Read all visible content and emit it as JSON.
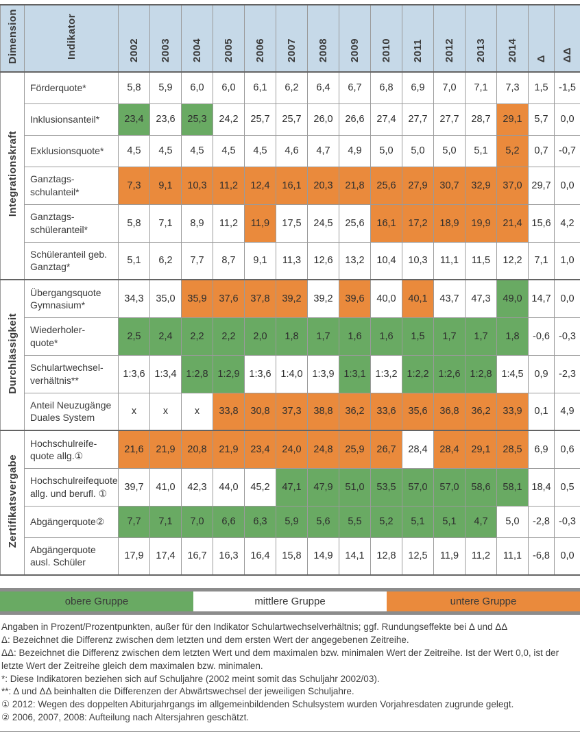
{
  "table": {
    "columns": {
      "dimension": "Dimension",
      "indicator": "Indikator",
      "years": [
        "2002",
        "2003",
        "2004",
        "2005",
        "2006",
        "2007",
        "2008",
        "2009",
        "2010",
        "2011",
        "2012",
        "2013",
        "2014"
      ],
      "delta": "Δ",
      "delta_delta": "ΔΔ"
    },
    "groups": [
      {
        "dimension": "Integrationskraft",
        "rows": [
          {
            "indicator": "Förderquote*",
            "values": [
              "5,8",
              "5,9",
              "6,0",
              "6,0",
              "6,1",
              "6,2",
              "6,4",
              "6,7",
              "6,8",
              "6,9",
              "7,0",
              "7,1",
              "7,3"
            ],
            "cells": "wwwwwwwwwwwww",
            "delta": "1,5",
            "delta_delta": "-1,5"
          },
          {
            "indicator": "Inklusionsanteil*",
            "values": [
              "23,4",
              "23,6",
              "25,3",
              "24,2",
              "25,7",
              "25,7",
              "26,0",
              "26,6",
              "27,4",
              "27,7",
              "27,7",
              "28,7",
              "29,1"
            ],
            "cells": "gwgwwwwwwwwwo",
            "delta": "5,7",
            "delta_delta": "0,0"
          },
          {
            "indicator": "Exklusionsquote*",
            "values": [
              "4,5",
              "4,5",
              "4,5",
              "4,5",
              "4,5",
              "4,6",
              "4,7",
              "4,9",
              "5,0",
              "5,0",
              "5,0",
              "5,1",
              "5,2"
            ],
            "cells": "wwwwwwwwwwwwo",
            "delta": "0,7",
            "delta_delta": "-0,7"
          },
          {
            "indicator": "Ganztags-\nschulanteil*",
            "values": [
              "7,3",
              "9,1",
              "10,3",
              "11,2",
              "12,4",
              "16,1",
              "20,3",
              "21,8",
              "25,6",
              "27,9",
              "30,7",
              "32,9",
              "37,0"
            ],
            "cells": "ooooooooooooo",
            "delta": "29,7",
            "delta_delta": "0,0"
          },
          {
            "indicator": "Ganztags-\nschüleranteil*",
            "values": [
              "5,8",
              "7,1",
              "8,9",
              "11,2",
              "11,9",
              "17,5",
              "24,5",
              "25,6",
              "16,1",
              "17,2",
              "18,9",
              "19,9",
              "21,4"
            ],
            "cells": "wwwwowwwooooo",
            "delta": "15,6",
            "delta_delta": "4,2"
          },
          {
            "indicator": "Schüleranteil geb.\nGanztag*",
            "values": [
              "5,1",
              "6,2",
              "7,7",
              "8,7",
              "9,1",
              "11,3",
              "12,6",
              "13,2",
              "10,4",
              "10,3",
              "11,1",
              "11,5",
              "12,2"
            ],
            "cells": "wwwwwwwwwwwww",
            "delta": "7,1",
            "delta_delta": "1,0"
          }
        ]
      },
      {
        "dimension": "Durchlässigkeit",
        "rows": [
          {
            "indicator": "Übergangsquote\nGymnasium*",
            "values": [
              "34,3",
              "35,0",
              "35,9",
              "37,6",
              "37,8",
              "39,2",
              "39,2",
              "39,6",
              "40,0",
              "40,1",
              "43,7",
              "47,3",
              "49,0"
            ],
            "cells": "wwoooowowowwg",
            "delta": "14,7",
            "delta_delta": "0,0"
          },
          {
            "indicator": "Wiederholer-\nquote*",
            "values": [
              "2,5",
              "2,4",
              "2,2",
              "2,2",
              "2,0",
              "1,8",
              "1,7",
              "1,6",
              "1,6",
              "1,5",
              "1,7",
              "1,7",
              "1,8"
            ],
            "cells": "ggggggggggggg",
            "delta": "-0,6",
            "delta_delta": "-0,3"
          },
          {
            "indicator": "Schulartwechsel-\nverhältnis**",
            "values": [
              "1:3,6",
              "1:3,4",
              "1:2,8",
              "1:2,9",
              "1:3,6",
              "1:4,0",
              "1:3,9",
              "1:3,1",
              "1:3,2",
              "1:2,2",
              "1:2,6",
              "1:2,8",
              "1:4,5"
            ],
            "cells": "wwggwwwgwgggw",
            "delta": "0,9",
            "delta_delta": "-2,3"
          },
          {
            "indicator": "Anteil Neuzugänge\nDuales System",
            "values": [
              "x",
              "x",
              "x",
              "33,8",
              "30,8",
              "37,3",
              "38,8",
              "36,2",
              "33,6",
              "35,6",
              "36,8",
              "36,2",
              "33,9"
            ],
            "cells": "wwwoooooooooo",
            "delta": "0,1",
            "delta_delta": "4,9"
          }
        ]
      },
      {
        "dimension": "Zertifikatsvergabe",
        "rows": [
          {
            "indicator": "Hochschulreife-\nquote allg.①",
            "values": [
              "21,6",
              "21,9",
              "20,8",
              "21,9",
              "23,4",
              "24,0",
              "24,8",
              "25,9",
              "26,7",
              "28,4",
              "28,4",
              "29,1",
              "28,5"
            ],
            "cells": "ooooooooowooo",
            "delta": "6,9",
            "delta_delta": "0,6"
          },
          {
            "indicator": "Hochschulreifequote\nallg. und berufl. ①",
            "values": [
              "39,7",
              "41,0",
              "42,3",
              "44,0",
              "45,2",
              "47,1",
              "47,9",
              "51,0",
              "53,5",
              "57,0",
              "57,0",
              "58,6",
              "58,1"
            ],
            "cells": "wwwwwgggggggg",
            "delta": "18,4",
            "delta_delta": "0,5"
          },
          {
            "indicator": "Abgängerquote②",
            "values": [
              "7,7",
              "7,1",
              "7,0",
              "6,6",
              "6,3",
              "5,9",
              "5,6",
              "5,5",
              "5,2",
              "5,1",
              "5,1",
              "4,7",
              "5,0"
            ],
            "cells": "ggggggggggggw",
            "delta": "-2,8",
            "delta_delta": "-0,3"
          },
          {
            "indicator": "Abgängerquote\nausl. Schüler",
            "values": [
              "17,9",
              "17,4",
              "16,7",
              "16,3",
              "16,4",
              "15,8",
              "14,9",
              "14,1",
              "12,8",
              "12,5",
              "11,9",
              "11,2",
              "11,1"
            ],
            "cells": "wwwwwwwwwwwww",
            "delta": "-6,8",
            "delta_delta": "0,0"
          }
        ]
      }
    ]
  },
  "legend": {
    "items": [
      {
        "label": "obere Gruppe",
        "group": "green"
      },
      {
        "label": "mittlere Gruppe",
        "group": "white"
      },
      {
        "label": "untere Gruppe",
        "group": "orange"
      }
    ]
  },
  "footnotes": [
    "Angaben in Prozent/Prozentpunkten, außer für den Indikator Schulartwechselverhältnis; ggf. Rundungseffekte bei Δ und ΔΔ",
    "Δ: Bezeichnet die Differenz zwischen dem letzten und dem ersten Wert der angegebenen Zeitreihe.",
    "ΔΔ: Bezeichnet die Differenz zwischen dem letzten Wert und dem maximalen bzw. minimalen Wert der Zeitreihe. Ist der Wert 0,0, ist der letzte Wert der Zeitreihe gleich dem maximalen bzw. minimalen.",
    "*: Diese Indikatoren beziehen sich auf Schuljahre (2002 meint somit das Schuljahr 2002/03).",
    "**: Δ und ΔΔ beinhalten die Differenzen der Abwärtswechsel der jeweiligen Schuljahre.",
    "① 2012: Wegen des doppelten Abiturjahrgangs im allgemeinbildenden Schulsystem wurden Vorjahresdaten zugrunde gelegt.",
    "② 2006, 2007, 2008: Aufteilung nach Altersjahren geschätzt."
  ],
  "colors": {
    "header_bg": "#c6d9e8",
    "green": "#69aa63",
    "orange": "#ea8a3c",
    "grid": "#9a9a9a",
    "strong_border": "#636363",
    "legend_gray": "#8c8c8c"
  }
}
